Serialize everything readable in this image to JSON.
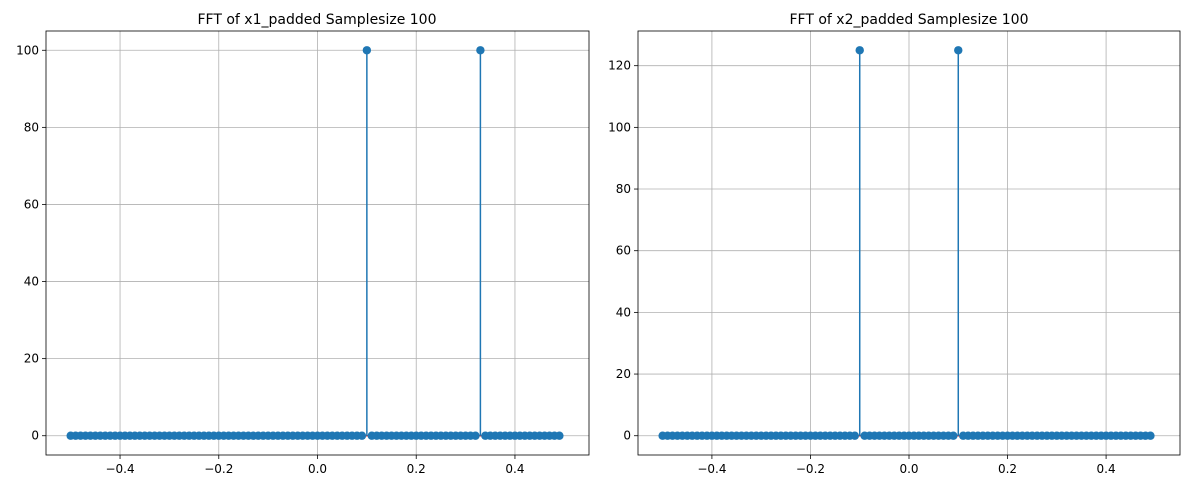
{
  "chart_data": [
    {
      "type": "stem",
      "title": "FFT of x1_padded Samplesize 100",
      "xlabel": "",
      "ylabel": "",
      "xlim": [
        -0.55,
        0.55
      ],
      "ylim": [
        -5,
        105
      ],
      "xticks": [
        -0.4,
        -0.2,
        0.0,
        0.2,
        0.4
      ],
      "xtick_labels": [
        "−0.4",
        "−0.2",
        "0.0",
        "0.2",
        "0.4"
      ],
      "yticks": [
        0,
        20,
        40,
        60,
        80,
        100
      ],
      "ytick_labels": [
        "0",
        "20",
        "40",
        "60",
        "80",
        "100"
      ],
      "grid": true,
      "x_start": -0.5,
      "x_step": 0.01,
      "n_points": 100,
      "default_value": 0,
      "peaks": [
        {
          "x": 0.1,
          "y": 100
        },
        {
          "x": 0.33,
          "y": 100
        }
      ],
      "colors": {
        "stem": "#1f77b4",
        "baseline": "#d62728",
        "grid": "#b0b0b0"
      }
    },
    {
      "type": "stem",
      "title": "FFT of x2_padded Samplesize 100",
      "xlabel": "",
      "ylabel": "",
      "xlim": [
        -0.55,
        0.55
      ],
      "ylim": [
        -6.25,
        131.25
      ],
      "xticks": [
        -0.4,
        -0.2,
        0.0,
        0.2,
        0.4
      ],
      "xtick_labels": [
        "−0.4",
        "−0.2",
        "0.0",
        "0.2",
        "0.4"
      ],
      "yticks": [
        0,
        20,
        40,
        60,
        80,
        100,
        120
      ],
      "ytick_labels": [
        "0",
        "20",
        "40",
        "60",
        "80",
        "100",
        "120"
      ],
      "grid": true,
      "x_start": -0.5,
      "x_step": 0.01,
      "n_points": 100,
      "default_value": 0,
      "peaks": [
        {
          "x": -0.1,
          "y": 125
        },
        {
          "x": 0.1,
          "y": 125
        }
      ],
      "colors": {
        "stem": "#1f77b4",
        "baseline": "#d62728",
        "grid": "#b0b0b0"
      }
    }
  ]
}
